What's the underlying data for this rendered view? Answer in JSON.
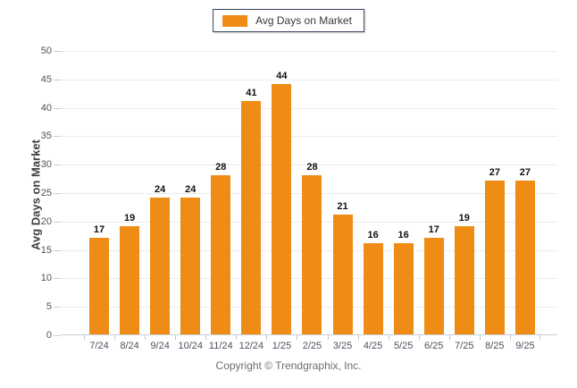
{
  "legend": {
    "label": "Avg Days on Market",
    "swatch_color": "#EF8C15"
  },
  "footer": {
    "text": "Copyright © Trendgraphix, Inc."
  },
  "colors": {
    "bar": "#EF8C15",
    "gridline": "#ECECEC",
    "axis_line": "#C9CDD4",
    "tick_label": "#4D5260",
    "data_label": "#111111",
    "legend_border": "#36425C",
    "footer_text": "#6E6E6E"
  },
  "chart_data": {
    "type": "bar",
    "title": "",
    "categories": [
      "7/24",
      "8/24",
      "9/24",
      "10/24",
      "11/24",
      "12/24",
      "1/25",
      "2/25",
      "3/25",
      "4/25",
      "5/25",
      "6/25",
      "7/25",
      "8/25",
      "9/25"
    ],
    "values": [
      17,
      19,
      24,
      24,
      28,
      41,
      44,
      28,
      21,
      16,
      16,
      17,
      19,
      27,
      27
    ],
    "xlabel": "",
    "ylabel": "Avg Days on Market",
    "ylim": [
      0,
      50
    ],
    "ytick_step": 5,
    "yticks": [
      0,
      5,
      10,
      15,
      20,
      25,
      30,
      35,
      40,
      45,
      50
    ],
    "grid": true,
    "legend_entries": [
      "Avg Days on Market"
    ],
    "legend_position": "top-center",
    "bar_color": "#EF8C15",
    "data_labels": true
  }
}
